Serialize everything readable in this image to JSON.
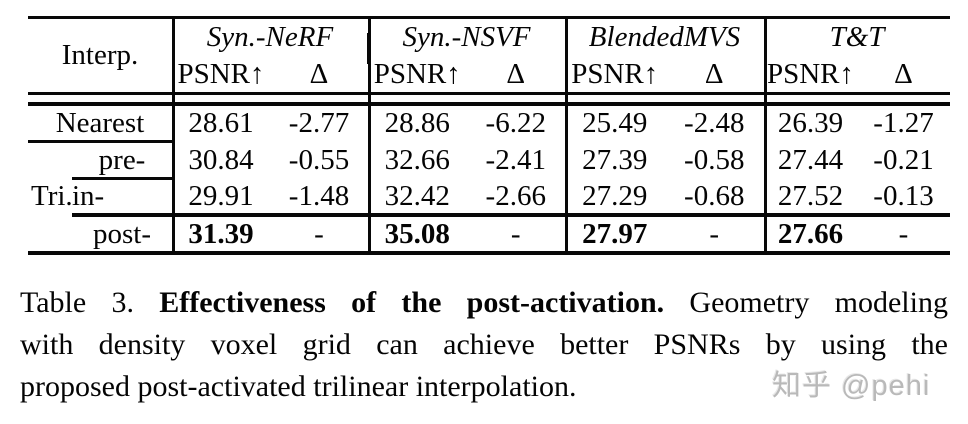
{
  "table": {
    "interp_header": "Interp.",
    "metric_psnr": "PSNR↑",
    "metric_delta": "Δ",
    "groups": [
      {
        "name": "Syn.-NeRF"
      },
      {
        "name": "Syn.-NSVF"
      },
      {
        "name": "BlendedMVS"
      },
      {
        "name": "T&T"
      }
    ],
    "rows": [
      {
        "group": "",
        "label": "Nearest",
        "cells": [
          [
            "28.61",
            "-2.77"
          ],
          [
            "28.86",
            "-6.22"
          ],
          [
            "25.49",
            "-2.48"
          ],
          [
            "26.39",
            "-1.27"
          ]
        ]
      },
      {
        "group": "",
        "label": "pre-",
        "cells": [
          [
            "30.84",
            "-0.55"
          ],
          [
            "32.66",
            "-2.41"
          ],
          [
            "27.39",
            "-0.58"
          ],
          [
            "27.44",
            "-0.21"
          ]
        ]
      },
      {
        "group": "Tri.",
        "label": "in-",
        "cells": [
          [
            "29.91",
            "-1.48"
          ],
          [
            "32.42",
            "-2.66"
          ],
          [
            "27.29",
            "-0.68"
          ],
          [
            "27.52",
            "-0.13"
          ]
        ]
      },
      {
        "group": "",
        "label": "post-",
        "cells": [
          [
            "31.39",
            "-"
          ],
          [
            "35.08",
            "-"
          ],
          [
            "27.97",
            "-"
          ],
          [
            "27.66",
            "-"
          ]
        ]
      }
    ]
  },
  "caption": {
    "line1_prefix": "Table 3. ",
    "line1_bold": "Effectiveness of the post-activation.",
    "line1_rest": " Geometry modeling",
    "line2": "with density voxel grid can achieve better PSNRs by using the",
    "line3": "proposed post-activated trilinear interpolation."
  },
  "watermark": {
    "text": "知乎 @pehi"
  }
}
